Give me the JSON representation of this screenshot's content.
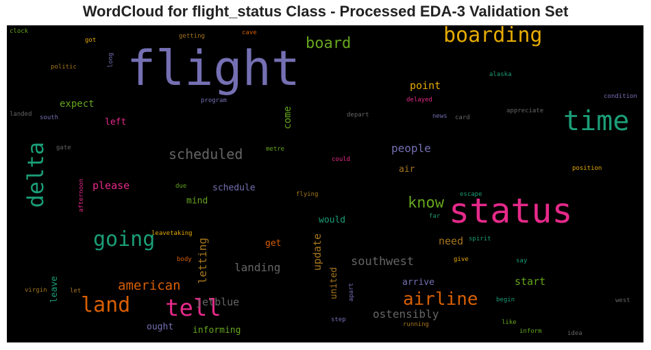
{
  "title": "WordCloud for flight_status Class - Processed EDA-3 Validation Set",
  "colors": {
    "purple": "#7570b3",
    "teal": "#1b9e77",
    "orange": "#d95f02",
    "pink": "#e7298a",
    "green": "#66a61e",
    "gold": "#e6ab02",
    "brown": "#a6761d",
    "gray": "#666666"
  },
  "words": [
    {
      "text": "flight",
      "color": "purple",
      "rank": 1
    },
    {
      "text": "status",
      "color": "pink",
      "rank": 2
    },
    {
      "text": "time",
      "color": "teal",
      "rank": 3
    },
    {
      "text": "boarding",
      "color": "gold",
      "rank": 4
    },
    {
      "text": "delta",
      "color": "teal",
      "rank": 5
    },
    {
      "text": "tell",
      "color": "pink",
      "rank": 6
    },
    {
      "text": "land",
      "color": "orange",
      "rank": 7
    },
    {
      "text": "going",
      "color": "teal",
      "rank": 8
    },
    {
      "text": "airline",
      "color": "orange",
      "rank": 9
    },
    {
      "text": "board",
      "color": "green",
      "rank": 10
    },
    {
      "text": "scheduled",
      "color": "gray",
      "rank": 11
    },
    {
      "text": "know",
      "color": "green",
      "rank": 12
    },
    {
      "text": "american",
      "color": "orange",
      "rank": 13
    },
    {
      "text": "southwest",
      "color": "gray",
      "rank": 14
    },
    {
      "text": "people",
      "color": "purple",
      "rank": 15
    },
    {
      "text": "landing",
      "color": "gray",
      "rank": 16
    },
    {
      "text": "letting",
      "color": "brown",
      "rank": 17
    },
    {
      "text": "ostensibly",
      "color": "gray",
      "rank": 18
    },
    {
      "text": "update",
      "color": "brown",
      "rank": 19
    },
    {
      "text": "point",
      "color": "gold",
      "rank": 20
    },
    {
      "text": "please",
      "color": "pink",
      "rank": 21
    },
    {
      "text": "start",
      "color": "green",
      "rank": 22
    },
    {
      "text": "need",
      "color": "brown",
      "rank": 23
    },
    {
      "text": "jetblue",
      "color": "gray",
      "rank": 24
    },
    {
      "text": "expect",
      "color": "green",
      "rank": 25
    },
    {
      "text": "come",
      "color": "green",
      "rank": 26
    },
    {
      "text": "schedule",
      "color": "purple",
      "rank": 27
    },
    {
      "text": "united",
      "color": "brown",
      "rank": 28
    },
    {
      "text": "left",
      "color": "pink",
      "rank": 29
    },
    {
      "text": "informing",
      "color": "green",
      "rank": 30
    },
    {
      "text": "arrive",
      "color": "purple",
      "rank": 31
    },
    {
      "text": "leave",
      "color": "teal",
      "rank": 32
    },
    {
      "text": "ought",
      "color": "purple",
      "rank": 33
    },
    {
      "text": "mind",
      "color": "green",
      "rank": 34
    },
    {
      "text": "would",
      "color": "teal",
      "rank": 35
    },
    {
      "text": "air",
      "color": "brown",
      "rank": 36
    },
    {
      "text": "get",
      "color": "orange",
      "rank": 37
    },
    {
      "text": "condition",
      "color": "purple",
      "rank": 38
    },
    {
      "text": "appreciate",
      "color": "gray",
      "rank": 39
    },
    {
      "text": "program",
      "color": "purple",
      "rank": 40
    },
    {
      "text": "delayed",
      "color": "pink",
      "rank": 41
    },
    {
      "text": "depart",
      "color": "gray",
      "rank": 42
    },
    {
      "text": "news",
      "color": "purple",
      "rank": 43
    },
    {
      "text": "card",
      "color": "gray",
      "rank": 44
    },
    {
      "text": "south",
      "color": "purple",
      "rank": 45
    },
    {
      "text": "alaska",
      "color": "teal",
      "rank": 46
    },
    {
      "text": "got",
      "color": "gold",
      "rank": 47
    },
    {
      "text": "getting",
      "color": "brown",
      "rank": 48
    },
    {
      "text": "cave",
      "color": "orange",
      "rank": 49
    },
    {
      "text": "clock",
      "color": "green",
      "rank": 50
    },
    {
      "text": "long",
      "color": "purple",
      "rank": 51
    },
    {
      "text": "politic",
      "color": "brown",
      "rank": 52
    },
    {
      "text": "landed",
      "color": "gray",
      "rank": 53
    },
    {
      "text": "gate",
      "color": "gray",
      "rank": 54
    },
    {
      "text": "metre",
      "color": "green",
      "rank": 55
    },
    {
      "text": "could",
      "color": "pink",
      "rank": 56
    },
    {
      "text": "position",
      "color": "gold",
      "rank": 57
    },
    {
      "text": "afternoon",
      "color": "pink",
      "rank": 58
    },
    {
      "text": "due",
      "color": "green",
      "rank": 59
    },
    {
      "text": "flying",
      "color": "brown",
      "rank": 60
    },
    {
      "text": "escape",
      "color": "teal",
      "rank": 61
    },
    {
      "text": "far",
      "color": "teal",
      "rank": 62
    },
    {
      "text": "leavetaking",
      "color": "gold",
      "rank": 63
    },
    {
      "text": "spirit",
      "color": "teal",
      "rank": 64
    },
    {
      "text": "body",
      "color": "orange",
      "rank": 65
    },
    {
      "text": "give",
      "color": "gold",
      "rank": 66
    },
    {
      "text": "say",
      "color": "teal",
      "rank": 67
    },
    {
      "text": "virgin",
      "color": "brown",
      "rank": 68
    },
    {
      "text": "let",
      "color": "brown",
      "rank": 69
    },
    {
      "text": "apart",
      "color": "purple",
      "rank": 70
    },
    {
      "text": "begin",
      "color": "teal",
      "rank": 71
    },
    {
      "text": "west",
      "color": "gray",
      "rank": 72
    },
    {
      "text": "step",
      "color": "purple",
      "rank": 73
    },
    {
      "text": "running",
      "color": "brown",
      "rank": 74
    },
    {
      "text": "like",
      "color": "green",
      "rank": 75
    },
    {
      "text": "inform",
      "color": "green",
      "rank": 76
    },
    {
      "text": "idea",
      "color": "gray",
      "rank": 77
    }
  ]
}
